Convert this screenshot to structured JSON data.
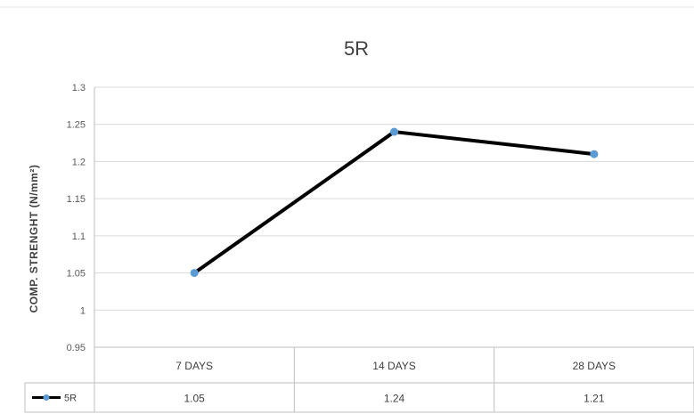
{
  "chart_data": {
    "type": "line",
    "title": "5R",
    "ylabel": "COMP. STRENGHT  (N/mm²)",
    "xlabel": "",
    "categories": [
      "7 DAYS",
      "14 DAYS",
      "28 DAYS"
    ],
    "series": [
      {
        "name": "5R",
        "values": [
          1.05,
          1.24,
          1.21
        ],
        "color": "#000000",
        "marker_color": "#5b9bd5"
      }
    ],
    "data_table": [
      "1.05",
      "1.24",
      "1.21"
    ],
    "ylim": [
      0.95,
      1.3
    ],
    "y_ticks": [
      "0.95",
      "1",
      "1.05",
      "1.1",
      "1.15",
      "1.2",
      "1.25",
      "1.3"
    ],
    "grid": true,
    "legend": "data-table"
  }
}
